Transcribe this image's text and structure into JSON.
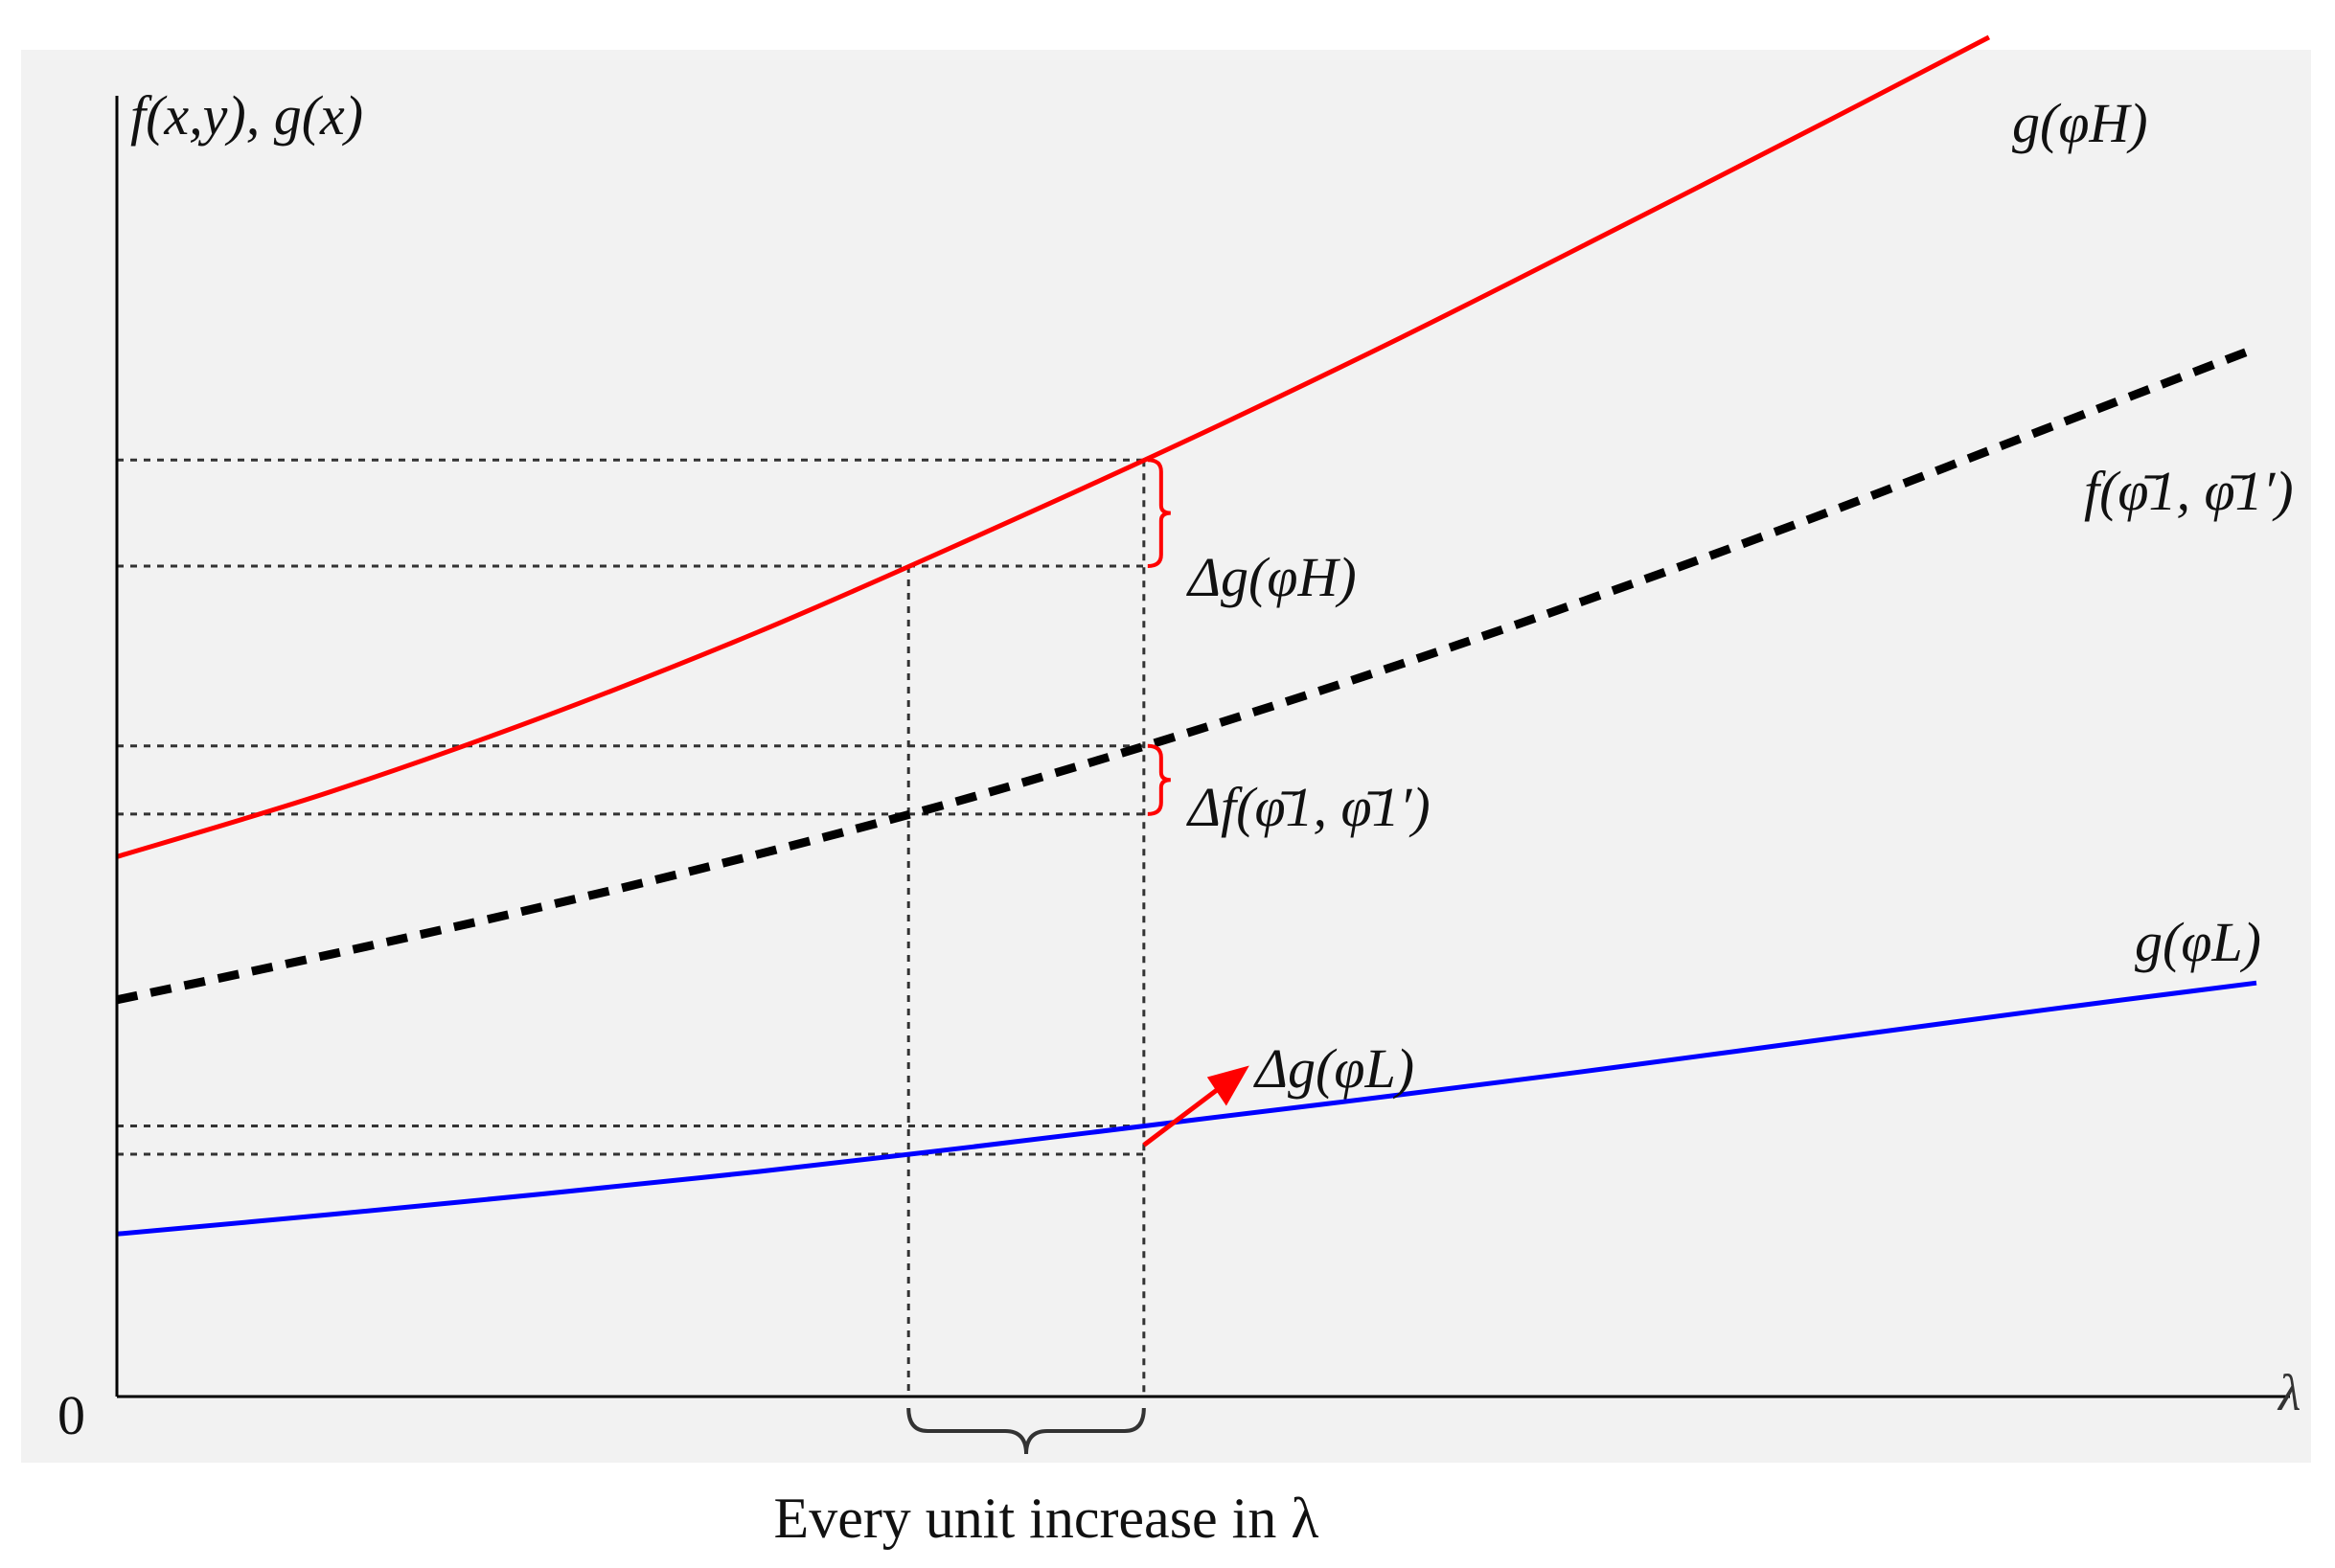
{
  "chart_data": {
    "type": "line",
    "title": "",
    "ylabel": "f(x,y), g(x)",
    "xlabel": "λ",
    "origin_label": "0",
    "x_domain": [
      0,
      100
    ],
    "y_domain": [
      0,
      100
    ],
    "grid": false,
    "colors": {
      "high": "#ff0000",
      "mid": "#000000",
      "low": "#0000ff",
      "guide": "#333333",
      "brace": "#ff0000",
      "arrow": "#ff0000",
      "panel": "#f2f2f2"
    },
    "series": [
      {
        "key": "high",
        "name": "g(φH)",
        "style": "solid",
        "x": [
          0,
          10,
          20,
          30,
          40,
          50,
          60,
          70,
          80,
          87.5
        ],
        "y": [
          41.5,
          46.5,
          52.3,
          58.8,
          66,
          73.5,
          81.4,
          89.7,
          98.1,
          104.5
        ]
      },
      {
        "key": "mid",
        "name": "f(φ̄1, φ̄1′)",
        "style": "dashed",
        "x": [
          0,
          10,
          20,
          30,
          40,
          50,
          60,
          70,
          80,
          90,
          100
        ],
        "y": [
          30.5,
          34,
          37.7,
          41.7,
          46.1,
          51,
          56.3,
          62,
          68,
          74.3,
          80.6
        ]
      },
      {
        "key": "low",
        "name": "g(φL)",
        "style": "solid",
        "x": [
          0,
          10,
          20,
          30,
          40,
          50,
          60,
          70,
          80,
          90,
          100
        ],
        "y": [
          12.5,
          14,
          15.6,
          17.3,
          19.2,
          21.2,
          23.2,
          25.3,
          27.5,
          29.7,
          31.8
        ]
      }
    ],
    "interval": {
      "x": [
        37,
        48
      ]
    },
    "annotations": {
      "delta_high": "Δg(φH)",
      "delta_mid": "Δf(φ̄1, φ̄1′)",
      "delta_low": "Δg(φL)",
      "bottom_caption": "Every unit increase in λ"
    }
  }
}
